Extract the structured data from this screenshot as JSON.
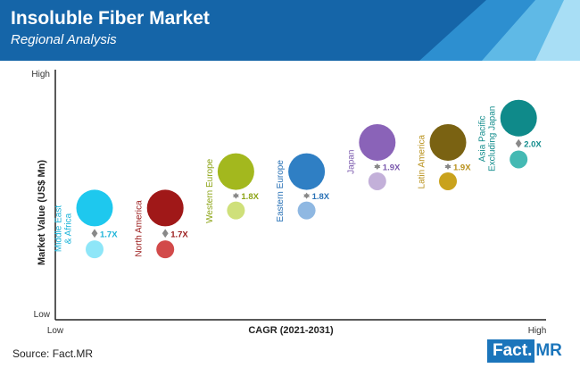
{
  "header": {
    "title": "Insoluble Fiber Market",
    "subtitle": "Regional Analysis"
  },
  "colors": {
    "header_bg": "#1565a8",
    "accent_light": "#7ec8ea",
    "brand": "#1b75bb"
  },
  "chart_data": {
    "type": "bubble",
    "xlabel": "CAGR (2021-2031)",
    "ylabel": "Market Value (US$ Mn)",
    "x_ticks": {
      "low": "Low",
      "high": "High"
    },
    "y_ticks": {
      "low": "Low",
      "high": "High"
    },
    "grid": false,
    "series": [
      {
        "name": "Middle East & Africa",
        "label_lines": [
          "Middle East",
          "& Africa"
        ],
        "growth": "1.7X",
        "color_big": "#1ec8ee",
        "color_small": "#8ee6f8",
        "text_color": "#1ab3d8",
        "x": 1,
        "y_now": 4.6,
        "y_future": 2.9
      },
      {
        "name": "North America",
        "label_lines": [
          "North America"
        ],
        "growth": "1.7X",
        "color_big": "#a01818",
        "color_small": "#d24a4a",
        "text_color": "#9a1a1a",
        "x": 2,
        "y_now": 4.6,
        "y_future": 2.9
      },
      {
        "name": "Western Europe",
        "label_lines": [
          "Western Europe"
        ],
        "growth": "1.8X",
        "color_big": "#a3b81e",
        "color_small": "#cfe07a",
        "text_color": "#8da417",
        "x": 3,
        "y_now": 6.1,
        "y_future": 4.5
      },
      {
        "name": "Eastern Europe",
        "label_lines": [
          "Eastern Europe"
        ],
        "growth": "1.8X",
        "color_big": "#2f7fc4",
        "color_small": "#8fb8e2",
        "text_color": "#2a72b6",
        "x": 4,
        "y_now": 6.1,
        "y_future": 4.5
      },
      {
        "name": "Japan",
        "label_lines": [
          "Japan"
        ],
        "growth": "1.9X",
        "color_big": "#8a63b8",
        "color_small": "#c3b0d9",
        "text_color": "#7a58ad",
        "x": 5,
        "y_now": 7.3,
        "y_future": 5.7
      },
      {
        "name": "Latin America",
        "label_lines": [
          "Latin America"
        ],
        "growth": "1.9X",
        "color_big": "#7a6212",
        "color_small": "#c9a21c",
        "text_color": "#b8901a",
        "x": 6,
        "y_now": 7.3,
        "y_future": 5.7
      },
      {
        "name": "Asia Pacific Excluding Japan",
        "label_lines": [
          "Asia Pacific",
          "Excluding Japan"
        ],
        "growth": "2.0X",
        "color_big": "#0f8a8a",
        "color_small": "#44b9b3",
        "text_color": "#138c8c",
        "x": 7,
        "y_now": 8.3,
        "y_future": 6.6
      }
    ]
  },
  "footer": {
    "source": "Source: Fact.MR",
    "logo_part1": "Fact",
    "logo_dot": ".",
    "logo_part2": "MR"
  }
}
